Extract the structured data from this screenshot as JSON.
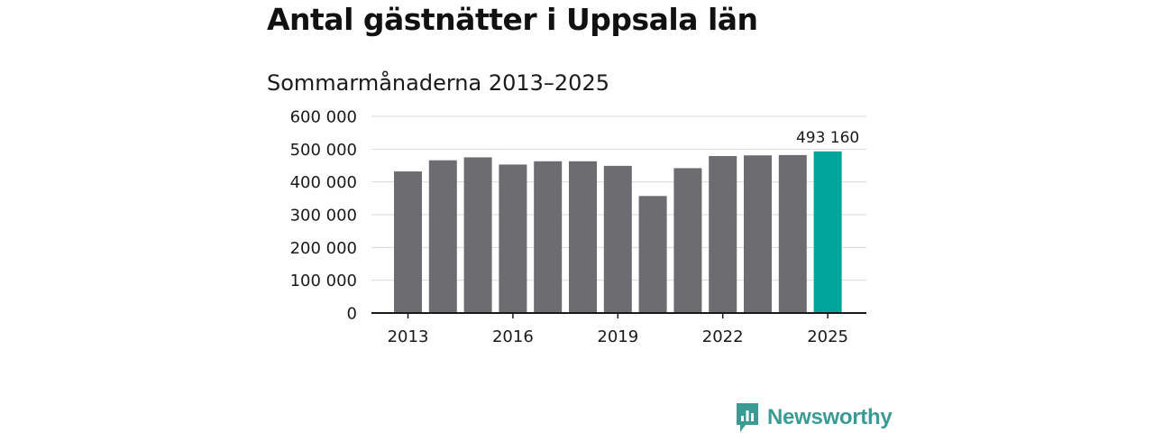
{
  "title": "Antal gästnätter i Uppsala län",
  "subtitle": "Sommarmånaderna 2013–2025",
  "brand": {
    "name": "Newsworthy",
    "color": "#3a9b95",
    "icon": "newsworthy-logo-icon"
  },
  "colors": {
    "bar": "#6d6c71",
    "highlight": "#00a699",
    "grid": "#d9d9d9",
    "axis": "#1a1a1a"
  },
  "chart_data": {
    "type": "bar",
    "title": "Antal gästnätter i Uppsala län",
    "subtitle": "Sommarmånaderna 2013–2025",
    "xlabel": "",
    "ylabel": "",
    "categories": [
      "2013",
      "2014",
      "2015",
      "2016",
      "2017",
      "2018",
      "2019",
      "2020",
      "2021",
      "2022",
      "2023",
      "2024",
      "2025"
    ],
    "values": [
      432000,
      466000,
      475000,
      453000,
      463000,
      463000,
      449000,
      357000,
      442000,
      479000,
      481000,
      482000,
      493160
    ],
    "ylim": [
      0,
      600000
    ],
    "yticks": [
      0,
      100000,
      200000,
      300000,
      400000,
      500000,
      600000
    ],
    "ytick_labels": [
      "0",
      "100 000",
      "200 000",
      "300 000",
      "400 000",
      "500 000",
      "600 000"
    ],
    "xtick_labels": [
      "2013",
      "2016",
      "2019",
      "2022",
      "2025"
    ],
    "highlight_index": 12,
    "data_labels": [
      {
        "index": 12,
        "text": "493 160"
      }
    ],
    "grid": true,
    "legend": "none"
  }
}
